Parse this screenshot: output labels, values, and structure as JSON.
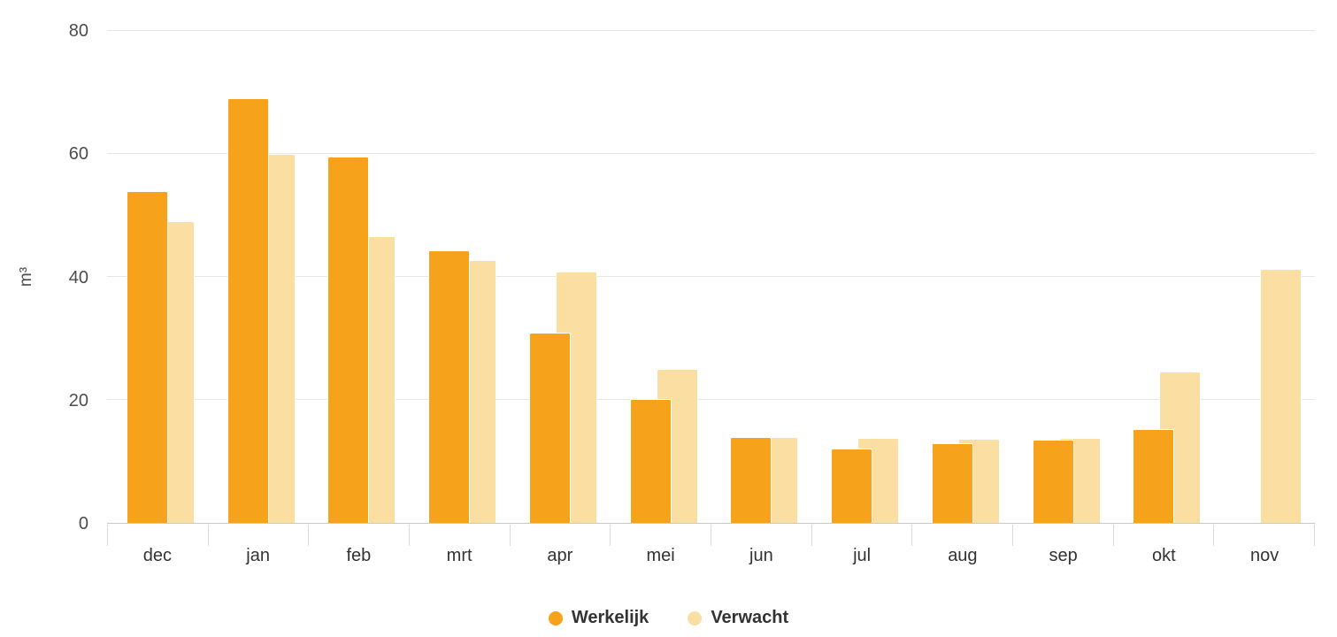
{
  "chart_data": {
    "type": "bar",
    "title": "",
    "xlabel": "",
    "ylabel": "m³",
    "ylim": [
      0,
      80
    ],
    "y_ticks": [
      0,
      20,
      40,
      60,
      80
    ],
    "grid": true,
    "legend_position": "bottom",
    "categories": [
      "dec",
      "jan",
      "feb",
      "mrt",
      "apr",
      "mei",
      "jun",
      "jul",
      "aug",
      "sep",
      "okt",
      "nov"
    ],
    "series": [
      {
        "name": "Werkelijk",
        "color": "#F7A21B",
        "values": [
          54,
          69,
          59.5,
          44.3,
          31,
          20.2,
          13.9,
          12.1,
          12.9,
          13.5,
          15.2,
          null
        ]
      },
      {
        "name": "Verwacht",
        "color": "#FBDFA2",
        "values": [
          49,
          60,
          46.6,
          42.8,
          40.8,
          25,
          13.9,
          13.8,
          13.7,
          13.8,
          24.6,
          41.3
        ]
      }
    ]
  }
}
